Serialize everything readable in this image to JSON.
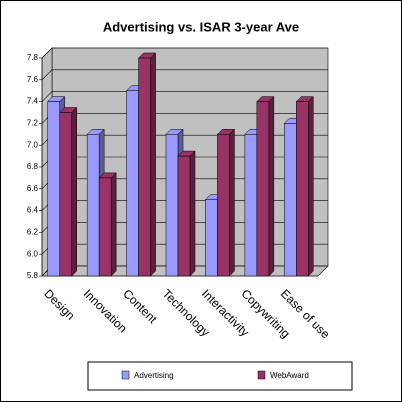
{
  "chart_data": {
    "type": "bar3d",
    "title": "Advertising vs. ISAR 3-year Ave",
    "categories": [
      "Design",
      "Innovation",
      "Content",
      "Technology",
      "Interactivity",
      "Copywriting",
      "Ease of use"
    ],
    "series": [
      {
        "name": "Advertising",
        "color": "#9999ff",
        "values": [
          7.4,
          7.1,
          7.5,
          7.1,
          6.5,
          7.1,
          7.2
        ]
      },
      {
        "name": "WebAward",
        "color": "#993366",
        "values": [
          7.3,
          6.7,
          7.8,
          6.9,
          7.1,
          7.4,
          7.4
        ]
      }
    ],
    "ylim": [
      5.8,
      7.8
    ],
    "yticks": [
      5.8,
      {
        "value": 6.0,
        "label": "6.0"
      },
      6.2,
      6.4,
      6.6,
      6.8,
      {
        "value": 7.0,
        "label": "7.0"
      },
      7.2,
      7.4,
      7.6,
      7.8
    ],
    "grid": true,
    "legend": "bottom"
  }
}
